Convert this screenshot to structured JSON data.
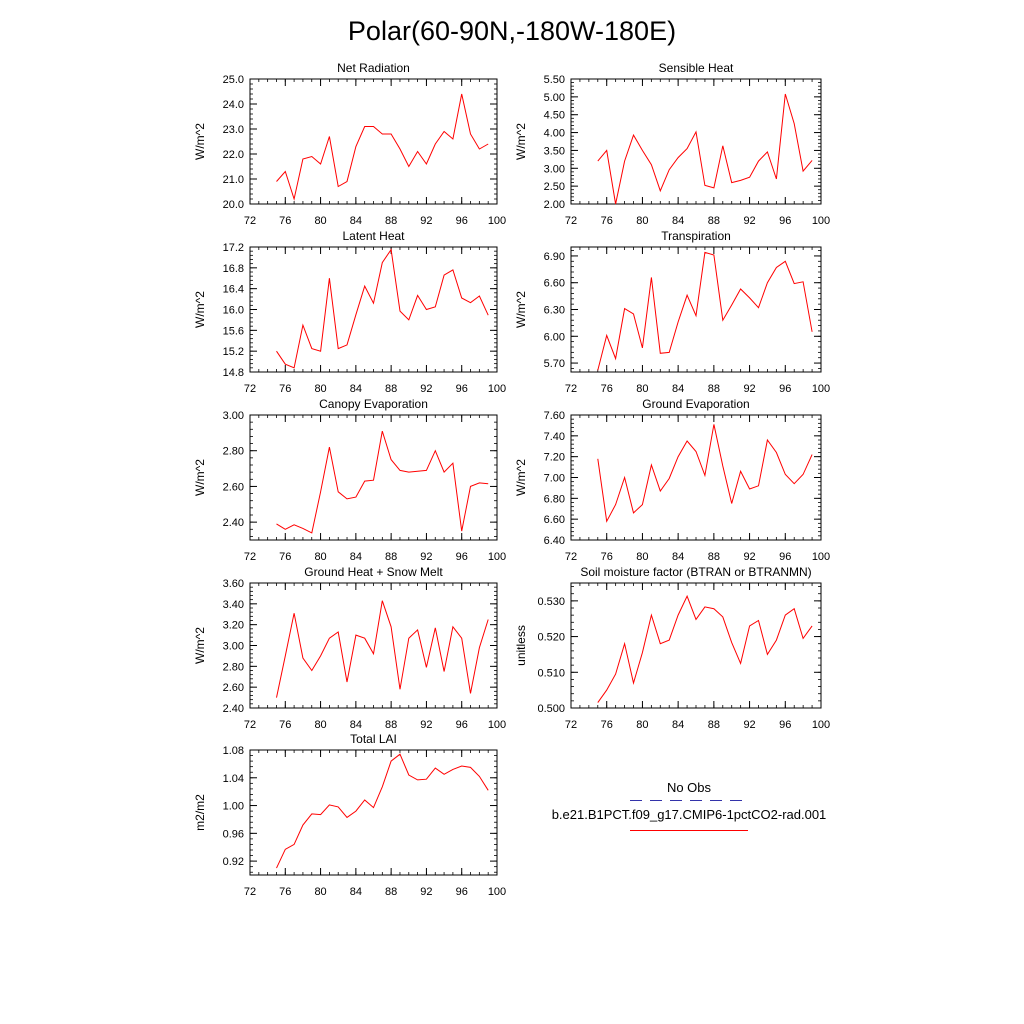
{
  "figure": {
    "title": "Polar(60-90N,-180W-180E)",
    "legend": {
      "obs_label": "No Obs",
      "model_label": "b.e21.B1PCT.f09_g17.CMIP6-1pctCO2-rad.001",
      "obs_color": "#3333aa",
      "model_color": "#ff0000"
    }
  },
  "chart_data": [
    {
      "type": "line",
      "title": "Net Radiation",
      "ylabel": "W/m^2",
      "xlim": [
        72,
        100
      ],
      "ylim": [
        20.0,
        25.0
      ],
      "xticks": [
        "72",
        "76",
        "80",
        "84",
        "88",
        "92",
        "96",
        "100"
      ],
      "yticks": [
        "20.0",
        "21.0",
        "22.0",
        "23.0",
        "24.0",
        "25.0"
      ],
      "series": [
        {
          "color": "#ff0000",
          "x": [
            75,
            76,
            77,
            78,
            79,
            80,
            81,
            82,
            83,
            84,
            85,
            86,
            87,
            88,
            89,
            90,
            91,
            92,
            93,
            94,
            95,
            96,
            97,
            98,
            99
          ],
          "y": [
            20.9,
            21.3,
            20.2,
            21.8,
            21.9,
            21.6,
            22.7,
            20.7,
            20.9,
            22.3,
            23.1,
            23.1,
            22.8,
            22.8,
            22.2,
            21.5,
            22.1,
            21.6,
            22.4,
            22.9,
            22.6,
            24.4,
            22.8,
            22.2,
            22.4
          ]
        }
      ]
    },
    {
      "type": "line",
      "title": "Sensible Heat",
      "ylabel": "W/m^2",
      "xlim": [
        72,
        100
      ],
      "ylim": [
        2.0,
        5.5
      ],
      "xticks": [
        "72",
        "76",
        "80",
        "84",
        "88",
        "92",
        "96",
        "100"
      ],
      "yticks": [
        "2.00",
        "2.50",
        "3.00",
        "3.50",
        "4.00",
        "4.50",
        "5.00",
        "5.50"
      ],
      "series": [
        {
          "color": "#ff0000",
          "x": [
            75,
            76,
            77,
            78,
            79,
            80,
            81,
            82,
            83,
            84,
            85,
            86,
            87,
            88,
            89,
            90,
            91,
            92,
            93,
            94,
            95,
            96,
            97,
            98,
            99
          ],
          "y": [
            3.2,
            3.5,
            2.0,
            3.2,
            3.93,
            3.5,
            3.1,
            2.37,
            2.96,
            3.3,
            3.55,
            4.02,
            2.52,
            2.45,
            3.63,
            2.6,
            2.66,
            2.75,
            3.2,
            3.46,
            2.7,
            5.08,
            4.25,
            2.92,
            3.22
          ]
        }
      ]
    },
    {
      "type": "line",
      "title": "Latent Heat",
      "ylabel": "W/m^2",
      "xlim": [
        72,
        100
      ],
      "ylim": [
        14.8,
        17.2
      ],
      "xticks": [
        "72",
        "76",
        "80",
        "84",
        "88",
        "92",
        "96",
        "100"
      ],
      "yticks": [
        "14.8",
        "15.2",
        "15.6",
        "16.0",
        "16.4",
        "16.8",
        "17.2"
      ],
      "series": [
        {
          "color": "#ff0000",
          "x": [
            75,
            76,
            77,
            78,
            79,
            80,
            81,
            82,
            83,
            84,
            85,
            86,
            87,
            88,
            89,
            90,
            91,
            92,
            93,
            94,
            95,
            96,
            97,
            98,
            99
          ],
          "y": [
            15.2,
            14.95,
            14.88,
            15.7,
            15.25,
            15.2,
            16.6,
            15.25,
            15.32,
            15.9,
            16.45,
            16.12,
            16.9,
            17.15,
            15.97,
            15.8,
            16.27,
            16.0,
            16.05,
            16.66,
            16.76,
            16.22,
            16.13,
            16.26,
            15.89
          ]
        }
      ]
    },
    {
      "type": "line",
      "title": "Transpiration",
      "ylabel": "W/m^2",
      "xlim": [
        72,
        100
      ],
      "ylim": [
        5.6,
        7.0
      ],
      "xticks": [
        "72",
        "76",
        "80",
        "84",
        "88",
        "92",
        "96",
        "100"
      ],
      "yticks": [
        "5.70",
        "6.00",
        "6.30",
        "6.60",
        "6.90"
      ],
      "series": [
        {
          "color": "#ff0000",
          "x": [
            75,
            76,
            77,
            78,
            79,
            80,
            81,
            82,
            83,
            84,
            85,
            86,
            87,
            88,
            89,
            90,
            91,
            92,
            93,
            94,
            95,
            96,
            97,
            98,
            99
          ],
          "y": [
            5.62,
            6.01,
            5.75,
            6.31,
            6.25,
            5.87,
            6.66,
            5.81,
            5.82,
            6.16,
            6.46,
            6.23,
            6.94,
            6.91,
            6.18,
            6.35,
            6.53,
            6.43,
            6.32,
            6.6,
            6.77,
            6.84,
            6.59,
            6.61,
            6.05
          ]
        }
      ]
    },
    {
      "type": "line",
      "title": "Canopy Evaporation",
      "ylabel": "W/m^2",
      "xlim": [
        72,
        100
      ],
      "ylim": [
        2.3,
        3.0
      ],
      "xticks": [
        "72",
        "76",
        "80",
        "84",
        "88",
        "92",
        "96",
        "100"
      ],
      "yticks": [
        "2.40",
        "2.60",
        "2.80",
        "3.00"
      ],
      "series": [
        {
          "color": "#ff0000",
          "x": [
            75,
            76,
            77,
            78,
            79,
            80,
            81,
            82,
            83,
            84,
            85,
            86,
            87,
            88,
            89,
            90,
            91,
            92,
            93,
            94,
            95,
            96,
            97,
            98,
            99
          ],
          "y": [
            2.39,
            2.36,
            2.385,
            2.365,
            2.34,
            2.57,
            2.82,
            2.57,
            2.53,
            2.54,
            2.63,
            2.635,
            2.91,
            2.75,
            2.69,
            2.68,
            2.685,
            2.69,
            2.8,
            2.68,
            2.73,
            2.35,
            2.6,
            2.62,
            2.615
          ]
        }
      ]
    },
    {
      "type": "line",
      "title": "Ground Evaporation",
      "ylabel": "W/m^2",
      "xlim": [
        72,
        100
      ],
      "ylim": [
        6.4,
        7.6
      ],
      "xticks": [
        "72",
        "76",
        "80",
        "84",
        "88",
        "92",
        "96",
        "100"
      ],
      "yticks": [
        "6.40",
        "6.60",
        "6.80",
        "7.00",
        "7.20",
        "7.40",
        "7.60"
      ],
      "series": [
        {
          "color": "#ff0000",
          "x": [
            75,
            76,
            77,
            78,
            79,
            80,
            81,
            82,
            83,
            84,
            85,
            86,
            87,
            88,
            89,
            90,
            91,
            92,
            93,
            94,
            95,
            96,
            97,
            98,
            99
          ],
          "y": [
            7.18,
            6.58,
            6.74,
            7.0,
            6.66,
            6.74,
            7.12,
            6.87,
            6.99,
            7.2,
            7.35,
            7.25,
            7.02,
            7.51,
            7.11,
            6.75,
            7.06,
            6.89,
            6.92,
            7.36,
            7.24,
            7.03,
            6.94,
            7.03,
            7.22
          ]
        }
      ]
    },
    {
      "type": "line",
      "title": "Ground Heat + Snow Melt",
      "ylabel": "W/m^2",
      "xlim": [
        72,
        100
      ],
      "ylim": [
        2.4,
        3.6
      ],
      "xticks": [
        "72",
        "76",
        "80",
        "84",
        "88",
        "92",
        "96",
        "100"
      ],
      "yticks": [
        "2.40",
        "2.60",
        "2.80",
        "3.00",
        "3.20",
        "3.40",
        "3.60"
      ],
      "series": [
        {
          "color": "#ff0000",
          "x": [
            75,
            76,
            77,
            78,
            79,
            80,
            81,
            82,
            83,
            84,
            85,
            86,
            87,
            88,
            89,
            90,
            91,
            92,
            93,
            94,
            95,
            96,
            97,
            98,
            99
          ],
          "y": [
            2.5,
            2.9,
            3.31,
            2.88,
            2.76,
            2.9,
            3.07,
            3.13,
            2.65,
            3.1,
            3.07,
            2.92,
            3.43,
            3.18,
            2.58,
            3.07,
            3.15,
            2.79,
            3.17,
            2.75,
            3.18,
            3.07,
            2.54,
            2.98,
            3.25
          ]
        }
      ]
    },
    {
      "type": "line",
      "title": "Soil moisture factor (BTRAN or BTRANMN)",
      "ylabel": "unitless",
      "xlim": [
        72,
        100
      ],
      "ylim": [
        0.5,
        0.535
      ],
      "xticks": [
        "72",
        "76",
        "80",
        "84",
        "88",
        "92",
        "96",
        "100"
      ],
      "yticks": [
        "0.500",
        "0.510",
        "0.520",
        "0.530"
      ],
      "series": [
        {
          "color": "#ff0000",
          "x": [
            75,
            76,
            77,
            78,
            79,
            80,
            81,
            82,
            83,
            84,
            85,
            86,
            87,
            88,
            89,
            90,
            91,
            92,
            93,
            94,
            95,
            96,
            97,
            98,
            99
          ],
          "y": [
            0.5015,
            0.505,
            0.5095,
            0.518,
            0.507,
            0.5155,
            0.526,
            0.518,
            0.519,
            0.526,
            0.5313,
            0.5248,
            0.5283,
            0.5278,
            0.5255,
            0.5183,
            0.5125,
            0.523,
            0.5245,
            0.515,
            0.519,
            0.526,
            0.5278,
            0.5195,
            0.523
          ]
        }
      ]
    },
    {
      "type": "line",
      "title": "Total LAI",
      "ylabel": "m2/m2",
      "xlim": [
        72,
        100
      ],
      "ylim": [
        0.9,
        1.08
      ],
      "xticks": [
        "72",
        "76",
        "80",
        "84",
        "88",
        "92",
        "96",
        "100"
      ],
      "yticks": [
        "0.92",
        "0.96",
        "1.00",
        "1.04",
        "1.08"
      ],
      "series": [
        {
          "color": "#ff0000",
          "x": [
            75,
            76,
            77,
            78,
            79,
            80,
            81,
            82,
            83,
            84,
            85,
            86,
            87,
            88,
            89,
            90,
            91,
            92,
            93,
            94,
            95,
            96,
            97,
            98,
            99
          ],
          "y": [
            0.91,
            0.937,
            0.944,
            0.972,
            0.988,
            0.987,
            1.001,
            0.998,
            0.983,
            0.992,
            1.008,
            0.997,
            1.027,
            1.064,
            1.074,
            1.044,
            1.037,
            1.038,
            1.054,
            1.045,
            1.052,
            1.057,
            1.055,
            1.042,
            1.022
          ]
        }
      ]
    }
  ]
}
